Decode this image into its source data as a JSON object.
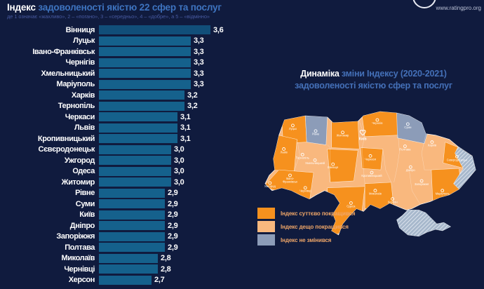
{
  "page": {
    "background": "#101B3E"
  },
  "header": {
    "title_bold": "Індекс",
    "title_rest": " задоволеності якістю 22 сфер та послуг",
    "subtitle": "де 1 означає «жахливо», 2 – «погано», 3 – «середньо», 4 – «добре», а 5 – «відмінно»",
    "website": "www.ratingpro.org"
  },
  "chart_data": {
    "type": "bar",
    "orientation": "horizontal",
    "title": "Індекс задоволеності якістю 22 сфер та послуг",
    "xlabel": "",
    "ylabel": "",
    "xlim": [
      1.9,
      3.7
    ],
    "grid": false,
    "bar_color": "#15618C",
    "leader_bar_color": "#114E79",
    "categories": [
      "Вінниця",
      "Луцьк",
      "Івано-Франківськ",
      "Чернігів",
      "Хмельницький",
      "Маріуполь",
      "Харків",
      "Тернопіль",
      "Черкаси",
      "Львів",
      "Кропивницький",
      "Сєвєродонецьк",
      "Ужгород",
      "Одеса",
      "Житомир",
      "Рівне",
      "Суми",
      "Київ",
      "Дніпро",
      "Запоріжжя",
      "Полтава",
      "Миколаїв",
      "Чернівці",
      "Херсон"
    ],
    "values": [
      3.6,
      3.3,
      3.3,
      3.3,
      3.3,
      3.3,
      3.2,
      3.2,
      3.1,
      3.1,
      3.1,
      3.0,
      3.0,
      3.0,
      3.0,
      2.9,
      2.9,
      2.9,
      2.9,
      2.9,
      2.9,
      2.8,
      2.8,
      2.7
    ]
  },
  "map": {
    "title_bold": "Динаміка",
    "title_rest": " зміни Індексу (2020-2021)",
    "title_line2": "задоволеності якістю сфер та послуг",
    "capital": "Київ",
    "legend": [
      {
        "label": "Індекс суттєво покращився",
        "color": "#F6911E"
      },
      {
        "label": "Індекс дещо покращився",
        "color": "#F9B87E"
      },
      {
        "label": "Індекс не змінився",
        "color": "#8C9CB8"
      }
    ],
    "colors": {
      "strong_improve": "#F6911E",
      "some_improve": "#F9B87E",
      "no_change": "#8C9CB8",
      "occupied_hatch": "#A7B8CC"
    }
  }
}
